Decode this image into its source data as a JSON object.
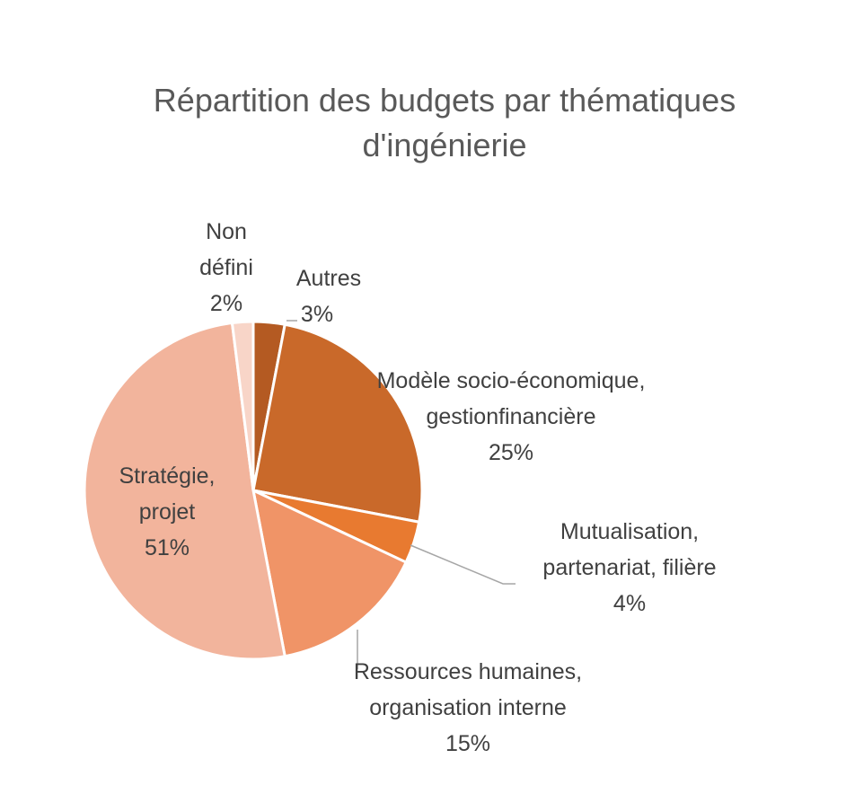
{
  "chart_data": {
    "type": "pie",
    "title_lines": [
      "Répartition des budgets par thématiques",
      "d'ingénierie"
    ],
    "slices": [
      {
        "label_lines": [
          "Autres"
        ],
        "value": 3,
        "pct": "3%",
        "color": "#B45A22"
      },
      {
        "label_lines": [
          "Modèle socio-économique,",
          "gestionfinancière"
        ],
        "value": 25,
        "pct": "25%",
        "color": "#C9692A"
      },
      {
        "label_lines": [
          "Mutualisation,",
          "partenariat, filière"
        ],
        "value": 4,
        "pct": "4%",
        "color": "#E87A30"
      },
      {
        "label_lines": [
          "Ressources humaines,",
          "organisation interne"
        ],
        "value": 15,
        "pct": "15%",
        "color": "#F09467"
      },
      {
        "label_lines": [
          "Stratégie,",
          "projet"
        ],
        "value": 51,
        "pct": "51%",
        "color": "#F2B49C"
      },
      {
        "label_lines": [
          "Non",
          "défini"
        ],
        "value": 2,
        "pct": "2%",
        "color": "#F8D5C8"
      }
    ]
  }
}
